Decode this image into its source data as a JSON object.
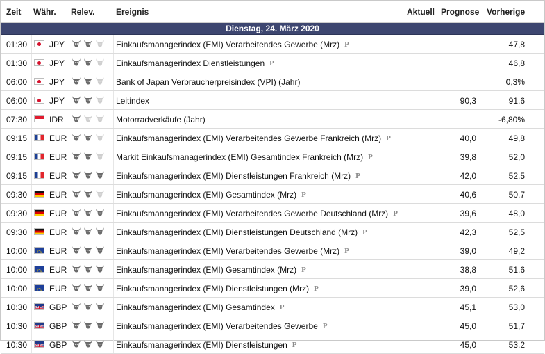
{
  "header": {
    "time": "Zeit",
    "currency": "Währ.",
    "relevance": "Relev.",
    "event": "Ereignis",
    "actual": "Aktuell",
    "forecast": "Prognose",
    "previous": "Vorherige"
  },
  "date_label": "Dienstag, 24. März 2020",
  "colors": {
    "band": "#3d4670",
    "bull_active": "#6b6b6b",
    "bull_inactive": "#cfcfcf",
    "pmark": "#8c8c8c"
  },
  "rows": [
    {
      "time": "01:30",
      "flag": "jp-flag-icon",
      "currency": "JPY",
      "relevance": 2,
      "event": "Einkaufsmanagerindex (EMI) Verarbeitendes Gewerbe (Mrz)",
      "prelim": "P",
      "actual": "",
      "forecast": "",
      "previous": "47,8"
    },
    {
      "time": "01:30",
      "flag": "jp-flag-icon",
      "currency": "JPY",
      "relevance": 2,
      "event": "Einkaufsmanagerindex Dienstleistungen",
      "prelim": "P",
      "actual": "",
      "forecast": "",
      "previous": "46,8"
    },
    {
      "time": "06:00",
      "flag": "jp-flag-icon",
      "currency": "JPY",
      "relevance": 2,
      "event": "Bank of Japan Verbraucherpreisindex (VPI) (Jahr)",
      "prelim": "",
      "actual": "",
      "forecast": "",
      "previous": "0,3%"
    },
    {
      "time": "06:00",
      "flag": "jp-flag-icon",
      "currency": "JPY",
      "relevance": 2,
      "event": "Leitindex",
      "prelim": "",
      "actual": "",
      "forecast": "90,3",
      "previous": "91,6"
    },
    {
      "time": "07:30",
      "flag": "id-flag-icon",
      "currency": "IDR",
      "relevance": 1,
      "event": "Motorradverkäufe (Jahr)",
      "prelim": "",
      "actual": "",
      "forecast": "",
      "previous": "-6,80%"
    },
    {
      "time": "09:15",
      "flag": "fr-flag-icon",
      "currency": "EUR",
      "relevance": 2,
      "event": "Einkaufsmanagerindex (EMI) Verarbeitendes Gewerbe Frankreich (Mrz)",
      "prelim": "P",
      "actual": "",
      "forecast": "40,0",
      "previous": "49,8"
    },
    {
      "time": "09:15",
      "flag": "fr-flag-icon",
      "currency": "EUR",
      "relevance": 2,
      "event": "Markit Einkaufsmanagerindex (EMI) Gesamtindex Frankreich (Mrz)",
      "prelim": "P",
      "actual": "",
      "forecast": "39,8",
      "previous": "52,0"
    },
    {
      "time": "09:15",
      "flag": "fr-flag-icon",
      "currency": "EUR",
      "relevance": 3,
      "event": "Einkaufsmanagerindex (EMI) Dienstleistungen Frankreich (Mrz)",
      "prelim": "P",
      "actual": "",
      "forecast": "42,0",
      "previous": "52,5"
    },
    {
      "time": "09:30",
      "flag": "de-flag-icon",
      "currency": "EUR",
      "relevance": 2,
      "event": "Einkaufsmanagerindex (EMI) Gesamtindex (Mrz)",
      "prelim": "P",
      "actual": "",
      "forecast": "40,6",
      "previous": "50,7"
    },
    {
      "time": "09:30",
      "flag": "de-flag-icon",
      "currency": "EUR",
      "relevance": 3,
      "event": "Einkaufsmanagerindex (EMI) Verarbeitendes Gewerbe Deutschland (Mrz)",
      "prelim": "P",
      "actual": "",
      "forecast": "39,6",
      "previous": "48,0"
    },
    {
      "time": "09:30",
      "flag": "de-flag-icon",
      "currency": "EUR",
      "relevance": 3,
      "event": "Einkaufsmanagerindex (EMI) Dienstleistungen Deutschland (Mrz)",
      "prelim": "P",
      "actual": "",
      "forecast": "42,3",
      "previous": "52,5"
    },
    {
      "time": "10:00",
      "flag": "eu-flag-icon",
      "currency": "EUR",
      "relevance": 3,
      "event": "Einkaufsmanagerindex (EMI) Verarbeitendes Gewerbe (Mrz)",
      "prelim": "P",
      "actual": "",
      "forecast": "39,0",
      "previous": "49,2"
    },
    {
      "time": "10:00",
      "flag": "eu-flag-icon",
      "currency": "EUR",
      "relevance": 3,
      "event": "Einkaufsmanagerindex (EMI) Gesamtindex (Mrz)",
      "prelim": "P",
      "actual": "",
      "forecast": "38,8",
      "previous": "51,6"
    },
    {
      "time": "10:00",
      "flag": "eu-flag-icon",
      "currency": "EUR",
      "relevance": 3,
      "event": "Einkaufsmanagerindex (EMI) Dienstleistungen (Mrz)",
      "prelim": "P",
      "actual": "",
      "forecast": "39,0",
      "previous": "52,6"
    },
    {
      "time": "10:30",
      "flag": "gb-flag-icon",
      "currency": "GBP",
      "relevance": 3,
      "event": "Einkaufsmanagerindex (EMI) Gesamtindex",
      "prelim": "P",
      "actual": "",
      "forecast": "45,1",
      "previous": "53,0"
    },
    {
      "time": "10:30",
      "flag": "gb-flag-icon",
      "currency": "GBP",
      "relevance": 3,
      "event": "Einkaufsmanagerindex (EMI) Verarbeitendes Gewerbe",
      "prelim": "P",
      "actual": "",
      "forecast": "45,0",
      "previous": "51,7"
    },
    {
      "time": "10:30",
      "flag": "gb-flag-icon",
      "currency": "GBP",
      "relevance": 3,
      "event": "Einkaufsmanagerindex (EMI) Dienstleistungen",
      "prelim": "P",
      "actual": "",
      "forecast": "45,0",
      "previous": "53,2"
    }
  ]
}
